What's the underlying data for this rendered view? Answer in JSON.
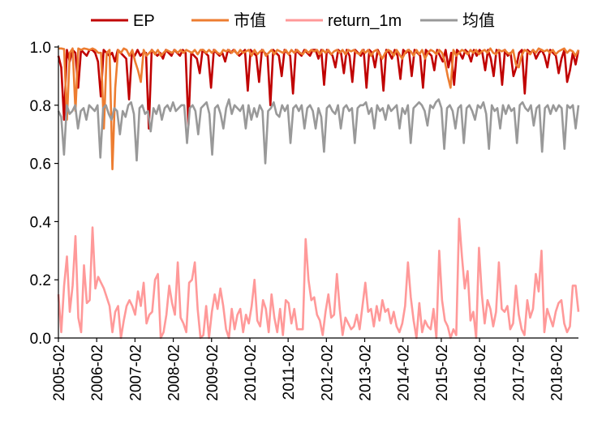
{
  "chart_data": {
    "type": "line",
    "title": "",
    "xlabel": "",
    "ylabel": "",
    "ylim": [
      0,
      1.0
    ],
    "yticks": [
      "0.0",
      "0.2",
      "0.4",
      "0.6",
      "0.8",
      "1.0"
    ],
    "xticks": [
      "2005-02",
      "2006-02",
      "2007-02",
      "2008-02",
      "2009-02",
      "2010-02",
      "2011-02",
      "2012-02",
      "2013-02",
      "2014-02",
      "2015-02",
      "2016-02",
      "2017-02",
      "2018-02"
    ],
    "x_start": "2005-02",
    "x_end": "2018-09",
    "grid": false,
    "legend_position": "top",
    "series": [
      {
        "name": "EP",
        "color": "#c00000",
        "values": [
          0.97,
          0.93,
          0.75,
          0.99,
          0.95,
          0.99,
          0.98,
          0.86,
          0.99,
          0.98,
          0.97,
          0.99,
          0.99,
          0.98,
          0.95,
          0.83,
          0.99,
          0.98,
          0.97,
          0.98,
          0.95,
          0.99,
          0.98,
          0.97,
          0.96,
          0.82,
          0.98,
          0.97,
          0.99,
          0.97,
          0.98,
          0.98,
          0.72,
          0.99,
          0.98,
          0.97,
          0.98,
          0.96,
          0.99,
          0.98,
          0.97,
          0.99,
          0.98,
          0.97,
          0.99,
          0.98,
          0.73,
          0.98,
          0.97,
          0.96,
          0.91,
          0.99,
          0.98,
          0.97,
          0.86,
          0.99,
          0.98,
          0.97,
          0.98,
          0.95,
          0.99,
          0.98,
          0.99,
          0.98,
          0.97,
          0.98,
          0.99,
          0.85,
          0.99,
          0.98,
          0.97,
          0.88,
          0.99,
          0.98,
          0.97,
          0.8,
          0.99,
          0.98,
          0.97,
          0.9,
          0.99,
          0.98,
          0.97,
          0.84,
          0.99,
          0.98,
          0.97,
          0.99,
          0.98,
          0.97,
          0.99,
          0.99,
          0.96,
          0.99,
          0.87,
          0.99,
          0.98,
          0.97,
          0.93,
          0.99,
          0.98,
          0.91,
          0.99,
          0.97,
          0.88,
          0.99,
          0.98,
          0.97,
          0.99,
          0.86,
          0.99,
          0.98,
          0.93,
          0.99,
          0.97,
          0.85,
          0.99,
          0.98,
          0.96,
          0.99,
          0.97,
          0.89,
          0.99,
          0.98,
          0.99,
          0.9,
          0.99,
          0.98,
          0.97,
          0.86,
          0.99,
          0.98,
          0.97,
          0.92,
          0.99,
          0.97,
          0.95,
          0.99,
          0.93,
          0.98,
          0.87,
          0.99,
          0.98,
          0.96,
          0.99,
          0.98,
          0.95,
          0.99,
          0.97,
          0.99,
          0.98,
          0.92,
          0.99,
          0.96,
          0.9,
          0.99,
          0.98,
          0.87,
          0.99,
          0.97,
          0.98,
          0.9,
          0.93,
          0.98,
          0.99,
          0.84,
          0.99,
          0.98,
          0.99,
          0.96,
          0.98,
          0.99,
          0.97,
          0.93,
          0.99,
          0.98,
          0.97,
          0.91,
          0.96,
          0.99,
          0.88,
          0.92,
          0.98,
          0.94,
          0.99
        ]
      },
      {
        "name": "市值",
        "color": "#ed7d31",
        "values": [
          0.995,
          0.995,
          0.993,
          0.75,
          0.98,
          0.995,
          0.78,
          0.995,
          0.99,
          0.995,
          0.993,
          0.99,
          0.995,
          0.99,
          0.98,
          0.98,
          0.72,
          0.98,
          0.99,
          0.58,
          0.86,
          0.99,
          0.98,
          0.995,
          0.99,
          0.97,
          0.99,
          0.95,
          0.92,
          0.88,
          0.99,
          0.97,
          0.98,
          0.99,
          0.975,
          0.99,
          0.97,
          0.98,
          0.99,
          0.985,
          0.98,
          0.99,
          0.98,
          0.99,
          0.98,
          0.99,
          0.985,
          0.98,
          0.99,
          0.975,
          0.99,
          0.99,
          0.98,
          0.99,
          0.98,
          0.99,
          0.98,
          0.975,
          0.99,
          0.985,
          0.99,
          0.98,
          0.99,
          0.975,
          0.99,
          0.98,
          0.985,
          0.99,
          0.97,
          0.99,
          0.975,
          0.985,
          0.99,
          0.97,
          0.98,
          0.99,
          0.975,
          0.99,
          0.985,
          0.98,
          0.99,
          0.975,
          0.99,
          0.98,
          0.99,
          0.98,
          0.975,
          0.99,
          0.98,
          0.99,
          0.985,
          0.99,
          0.975,
          0.99,
          0.98,
          0.99,
          0.975,
          0.985,
          0.99,
          0.98,
          0.99,
          0.975,
          0.99,
          0.985,
          0.99,
          0.98,
          0.975,
          0.99,
          0.98,
          0.99,
          0.97,
          0.985,
          0.99,
          0.975,
          0.96,
          0.98,
          0.99,
          0.985,
          0.97,
          0.99,
          0.975,
          0.96,
          0.98,
          0.99,
          0.985,
          0.97,
          0.99,
          0.975,
          0.99,
          0.96,
          0.98,
          0.99,
          0.985,
          0.975,
          0.99,
          0.98,
          0.95,
          0.9,
          0.86,
          0.99,
          0.97,
          0.98,
          0.99,
          0.985,
          0.975,
          0.99,
          0.98,
          0.99,
          0.975,
          0.985,
          0.99,
          0.98,
          0.995,
          0.98,
          0.975,
          0.99,
          0.985,
          0.99,
          0.98,
          0.975,
          0.99,
          0.94,
          0.93,
          0.97,
          0.99,
          0.985,
          0.975,
          0.99,
          0.98,
          0.995,
          0.99,
          0.985,
          0.99,
          0.98,
          0.99,
          0.975,
          0.985,
          0.99,
          0.995,
          0.98,
          0.99,
          0.985,
          0.97,
          0.99
        ]
      },
      {
        "name": "return_1m",
        "color": "#ff9999",
        "values": [
          0.15,
          0.02,
          0.18,
          0.28,
          0.09,
          0.18,
          0.35,
          0.07,
          0.02,
          0.25,
          0.12,
          0.13,
          0.38,
          0.17,
          0.21,
          0.19,
          0.17,
          0.14,
          0.11,
          0.02,
          0.09,
          0.11,
          0.0,
          0.06,
          0.11,
          0.13,
          0.11,
          0.08,
          0.16,
          0.11,
          0.19,
          0.05,
          0.08,
          0.09,
          0.2,
          0.22,
          0.0,
          0.02,
          0.08,
          0.18,
          0.12,
          0.08,
          0.26,
          0.07,
          0.05,
          0.02,
          0.19,
          0.2,
          0.26,
          0.1,
          0.0,
          0.01,
          0.11,
          0.0,
          0.09,
          0.15,
          0.1,
          0.17,
          0.11,
          0.03,
          0.0,
          0.1,
          0.03,
          0.08,
          0.1,
          0.02,
          0.08,
          0.05,
          0.11,
          0.2,
          0.06,
          0.04,
          0.13,
          0.1,
          0.02,
          0.15,
          0.07,
          0.02,
          0.1,
          0.01,
          0.13,
          0.12,
          0.05,
          0.1,
          0.03,
          0.03,
          0.03,
          0.34,
          0.2,
          0.13,
          0.14,
          0.08,
          0.06,
          0.01,
          0.09,
          0.15,
          0.07,
          0.08,
          0.22,
          0.1,
          0.01,
          0.07,
          0.05,
          0.03,
          0.04,
          0.08,
          0.03,
          0.11,
          0.19,
          0.09,
          0.1,
          0.04,
          0.11,
          0.06,
          0.13,
          0.09,
          0.1,
          0.05,
          0.09,
          0.04,
          0.02,
          0.05,
          0.11,
          0.26,
          0.14,
          0.06,
          0.0,
          0.12,
          0.02,
          0.06,
          0.04,
          0.03,
          0.1,
          0.0,
          0.3,
          0.13,
          0.06,
          0.04,
          0.0,
          0.03,
          0.01,
          0.41,
          0.28,
          0.17,
          0.23,
          0.06,
          0.09,
          0.0,
          0.31,
          0.15,
          0.05,
          0.13,
          0.1,
          0.04,
          0.09,
          0.26,
          0.1,
          0.09,
          0.11,
          0.03,
          0.05,
          0.18,
          0.08,
          0.03,
          0.01,
          0.13,
          0.07,
          0.1,
          0.22,
          0.16,
          0.3,
          0.02,
          0.1,
          0.07,
          0.04,
          0.09,
          0.12,
          0.13,
          0.05,
          0.02,
          0.04,
          0.18,
          0.18,
          0.09
        ]
      },
      {
        "name": "均值",
        "color": "#999999",
        "values": [
          0.78,
          0.76,
          0.63,
          0.8,
          0.77,
          0.78,
          0.8,
          0.72,
          0.78,
          0.79,
          0.75,
          0.8,
          0.79,
          0.78,
          0.8,
          0.62,
          0.79,
          0.8,
          0.77,
          0.75,
          0.79,
          0.78,
          0.7,
          0.78,
          0.76,
          0.8,
          0.81,
          0.77,
          0.61,
          0.79,
          0.8,
          0.77,
          0.78,
          0.71,
          0.79,
          0.77,
          0.8,
          0.75,
          0.79,
          0.8,
          0.78,
          0.81,
          0.78,
          0.79,
          0.8,
          0.8,
          0.67,
          0.79,
          0.8,
          0.78,
          0.7,
          0.79,
          0.8,
          0.81,
          0.77,
          0.63,
          0.79,
          0.8,
          0.77,
          0.72,
          0.79,
          0.82,
          0.77,
          0.8,
          0.79,
          0.78,
          0.8,
          0.72,
          0.8,
          0.75,
          0.79,
          0.76,
          0.8,
          0.78,
          0.6,
          0.78,
          0.79,
          0.81,
          0.77,
          0.76,
          0.8,
          0.78,
          0.8,
          0.67,
          0.79,
          0.8,
          0.78,
          0.8,
          0.72,
          0.79,
          0.8,
          0.78,
          0.72,
          0.79,
          0.76,
          0.64,
          0.79,
          0.8,
          0.78,
          0.77,
          0.8,
          0.72,
          0.79,
          0.8,
          0.78,
          0.79,
          0.67,
          0.79,
          0.8,
          0.8,
          0.81,
          0.77,
          0.79,
          0.72,
          0.8,
          0.78,
          0.79,
          0.75,
          0.8,
          0.78,
          0.79,
          0.8,
          0.72,
          0.79,
          0.77,
          0.8,
          0.67,
          0.79,
          0.8,
          0.81,
          0.8,
          0.78,
          0.73,
          0.8,
          0.79,
          0.81,
          0.82,
          0.79,
          0.65,
          0.79,
          0.8,
          0.78,
          0.72,
          0.79,
          0.8,
          0.67,
          0.79,
          0.8,
          0.78,
          0.75,
          0.8,
          0.79,
          0.81,
          0.77,
          0.65,
          0.8,
          0.78,
          0.79,
          0.72,
          0.8,
          0.77,
          0.8,
          0.78,
          0.79,
          0.67,
          0.8,
          0.81,
          0.79,
          0.78,
          0.8,
          0.73,
          0.79,
          0.8,
          0.64,
          0.79,
          0.8,
          0.77,
          0.8,
          0.78,
          0.8,
          0.79,
          0.65,
          0.8,
          0.79,
          0.8,
          0.72,
          0.8
        ]
      }
    ]
  }
}
